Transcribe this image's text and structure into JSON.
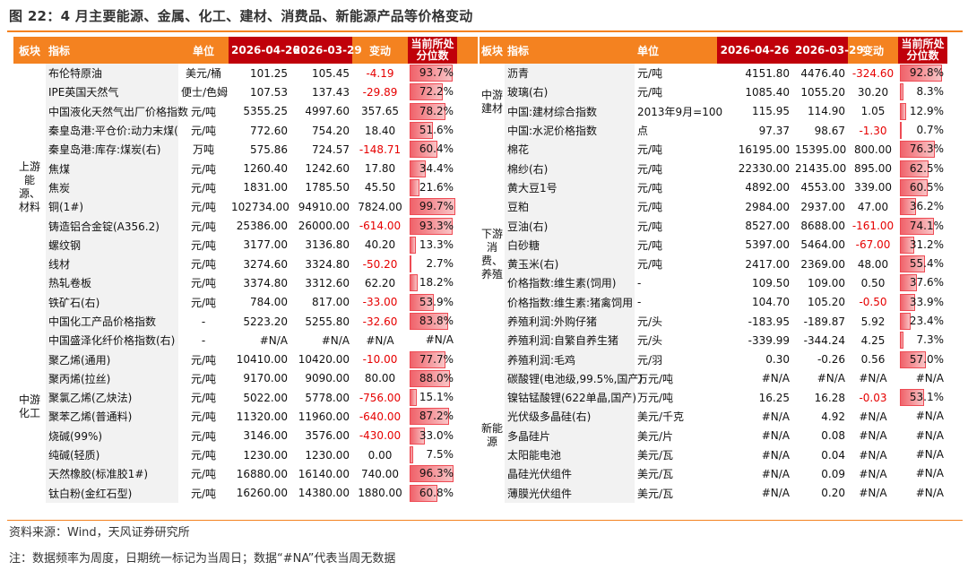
{
  "title": "图 22：4 月主要能源、金属、化工、建材、消费品、新能源产品等价格变动",
  "columns": {
    "block": "板块",
    "indicator": "指标",
    "unit": "单位",
    "date1": "2026-04-26",
    "date2": "2026-03-29",
    "change": "变动",
    "pct_line1": "当前所处",
    "pct_line2": "分位数"
  },
  "colors": {
    "accent": "#f48220",
    "header_dark": "#c0000a",
    "negative": "#e60000",
    "bar": "#f0626a"
  },
  "left_groups": [
    {
      "label": "上游能源、材料",
      "rows": [
        {
          "name": "布伦特原油",
          "unit": "美元/桶",
          "v1": "101.25",
          "v2": "105.45",
          "chg": "-4.19",
          "pct": "93.7%",
          "p": 0.937
        },
        {
          "name": "IPE英国天然气",
          "unit": "便士/色姆",
          "v1": "107.53",
          "v2": "137.43",
          "chg": "-29.89",
          "pct": "72.2%",
          "p": 0.722
        },
        {
          "name": "中国液化天然气出厂价格指数",
          "unit": "元/吨",
          "v1": "5355.25",
          "v2": "4997.60",
          "chg": "357.65",
          "pct": "78.2%",
          "p": 0.782
        },
        {
          "name": "秦皇岛港:平仓价:动力末煤(",
          "unit": "元/吨",
          "v1": "772.60",
          "v2": "754.20",
          "chg": "18.40",
          "pct": "51.6%",
          "p": 0.516
        },
        {
          "name": "秦皇岛港:库存:煤炭(右)",
          "unit": "万吨",
          "v1": "575.86",
          "v2": "724.57",
          "chg": "-148.71",
          "pct": "60.4%",
          "p": 0.604
        },
        {
          "name": "焦煤",
          "unit": "元/吨",
          "v1": "1260.40",
          "v2": "1242.60",
          "chg": "17.80",
          "pct": "34.4%",
          "p": 0.344
        },
        {
          "name": "焦炭",
          "unit": "元/吨",
          "v1": "1831.00",
          "v2": "1785.50",
          "chg": "45.50",
          "pct": "21.6%",
          "p": 0.216
        },
        {
          "name": "铜(1#)",
          "unit": "元/吨",
          "v1": "102734.00",
          "v2": "94910.00",
          "chg": "7824.00",
          "pct": "99.7%",
          "p": 0.997
        },
        {
          "name": "铸造铝合金锭(A356.2)",
          "unit": "元/吨",
          "v1": "25386.00",
          "v2": "26000.00",
          "chg": "-614.00",
          "pct": "93.3%",
          "p": 0.933
        },
        {
          "name": "螺纹钢",
          "unit": "元/吨",
          "v1": "3177.00",
          "v2": "3136.80",
          "chg": "40.20",
          "pct": "13.3%",
          "p": 0.133
        },
        {
          "name": "线材",
          "unit": "元/吨",
          "v1": "3274.60",
          "v2": "3324.80",
          "chg": "-50.20",
          "pct": "2.7%",
          "p": 0.027
        },
        {
          "name": "热轧卷板",
          "unit": "元/吨",
          "v1": "3374.80",
          "v2": "3312.60",
          "chg": "62.20",
          "pct": "18.2%",
          "p": 0.182
        },
        {
          "name": "铁矿石(右)",
          "unit": "元/吨",
          "v1": "784.00",
          "v2": "817.00",
          "chg": "-33.00",
          "pct": "53.9%",
          "p": 0.539
        }
      ]
    },
    {
      "label": "中游化工",
      "rows": [
        {
          "name": "中国化工产品价格指数",
          "unit": "-",
          "v1": "5223.20",
          "v2": "5255.80",
          "chg": "-32.60",
          "pct": "83.8%",
          "p": 0.838
        },
        {
          "name": "中国盛泽化纤价格指数(右)",
          "unit": "-",
          "v1": "#N/A",
          "v2": "#N/A",
          "chg": "#N/A",
          "pct": "#N/A",
          "p": 0
        },
        {
          "name": "聚乙烯(通用)",
          "unit": "元/吨",
          "v1": "10410.00",
          "v2": "10420.00",
          "chg": "-10.00",
          "pct": "77.7%",
          "p": 0.777
        },
        {
          "name": "聚丙烯(拉丝)",
          "unit": "元/吨",
          "v1": "9170.00",
          "v2": "9090.00",
          "chg": "80.00",
          "pct": "88.0%",
          "p": 0.88
        },
        {
          "name": "聚氯乙烯(乙炔法)",
          "unit": "元/吨",
          "v1": "5022.00",
          "v2": "5778.00",
          "chg": "-756.00",
          "pct": "15.1%",
          "p": 0.151
        },
        {
          "name": "聚苯乙烯(普通料)",
          "unit": "元/吨",
          "v1": "11320.00",
          "v2": "11960.00",
          "chg": "-640.00",
          "pct": "87.2%",
          "p": 0.872
        },
        {
          "name": "烧碱(99%)",
          "unit": "元/吨",
          "v1": "3146.00",
          "v2": "3576.00",
          "chg": "-430.00",
          "pct": "33.0%",
          "p": 0.33
        },
        {
          "name": "纯碱(轻质)",
          "unit": "元/吨",
          "v1": "1230.00",
          "v2": "1230.00",
          "chg": "0.00",
          "pct": "7.5%",
          "p": 0.075
        },
        {
          "name": "天然橡胶(标准胶1#)",
          "unit": "元/吨",
          "v1": "16880.00",
          "v2": "16140.00",
          "chg": "740.00",
          "pct": "96.3%",
          "p": 0.963
        },
        {
          "name": "钛白粉(金红石型)",
          "unit": "元/吨",
          "v1": "16260.00",
          "v2": "14380.00",
          "chg": "1880.00",
          "pct": "60.8%",
          "p": 0.608
        }
      ]
    }
  ],
  "right_groups": [
    {
      "label": "中游建材",
      "rows": [
        {
          "name": "沥青",
          "unit": "元/吨",
          "v1": "4151.80",
          "v2": "4476.40",
          "chg": "-324.60",
          "pct": "92.8%",
          "p": 0.928
        },
        {
          "name": "玻璃(右)",
          "unit": "元/吨",
          "v1": "1085.40",
          "v2": "1055.20",
          "chg": "30.20",
          "pct": "8.3%",
          "p": 0.083
        },
        {
          "name": "中国:建材综合指数",
          "unit": "2013年9月=100",
          "v1": "115.95",
          "v2": "114.90",
          "chg": "1.05",
          "pct": "12.9%",
          "p": 0.129
        },
        {
          "name": "中国:水泥价格指数",
          "unit": "点",
          "v1": "97.37",
          "v2": "98.67",
          "chg": "-1.30",
          "pct": "0.7%",
          "p": 0.007
        }
      ]
    },
    {
      "label": "下游消费、养殖",
      "rows": [
        {
          "name": "棉花",
          "unit": "元/吨",
          "v1": "16195.00",
          "v2": "15395.00",
          "chg": "800.00",
          "pct": "76.3%",
          "p": 0.763
        },
        {
          "name": "棉纱(右)",
          "unit": "元/吨",
          "v1": "22330.00",
          "v2": "21435.00",
          "chg": "895.00",
          "pct": "62.5%",
          "p": 0.625
        },
        {
          "name": "黄大豆1号",
          "unit": "元/吨",
          "v1": "4892.00",
          "v2": "4553.00",
          "chg": "339.00",
          "pct": "60.5%",
          "p": 0.605
        },
        {
          "name": "豆粕",
          "unit": "元/吨",
          "v1": "2984.00",
          "v2": "2937.00",
          "chg": "47.00",
          "pct": "36.2%",
          "p": 0.362
        },
        {
          "name": "豆油(右)",
          "unit": "元/吨",
          "v1": "8527.00",
          "v2": "8688.00",
          "chg": "-161.00",
          "pct": "74.1%",
          "p": 0.741
        },
        {
          "name": "白砂糖",
          "unit": "元/吨",
          "v1": "5397.00",
          "v2": "5464.00",
          "chg": "-67.00",
          "pct": "31.2%",
          "p": 0.312
        },
        {
          "name": "黄玉米(右)",
          "unit": "元/吨",
          "v1": "2417.00",
          "v2": "2369.00",
          "chg": "48.00",
          "pct": "55.4%",
          "p": 0.554
        },
        {
          "name": "价格指数:维生素(饲用)",
          "unit": "-",
          "v1": "109.50",
          "v2": "109.00",
          "chg": "0.50",
          "pct": "37.6%",
          "p": 0.376
        },
        {
          "name": "价格指数:维生素:猪禽饲用",
          "unit": "-",
          "v1": "104.70",
          "v2": "105.20",
          "chg": "-0.50",
          "pct": "33.9%",
          "p": 0.339
        },
        {
          "name": "养殖利润:外购仔猪",
          "unit": "元/头",
          "v1": "-183.95",
          "v2": "-189.87",
          "chg": "5.92",
          "pct": "23.4%",
          "p": 0.234
        },
        {
          "name": "养殖利润:自繁自养生猪",
          "unit": "元/头",
          "v1": "-339.99",
          "v2": "-344.24",
          "chg": "4.25",
          "pct": "7.3%",
          "p": 0.073
        },
        {
          "name": "养殖利润:毛鸡",
          "unit": "元/羽",
          "v1": "0.30",
          "v2": "-0.26",
          "chg": "0.56",
          "pct": "57.0%",
          "p": 0.57
        }
      ]
    },
    {
      "label": "新能源",
      "rows": [
        {
          "name": "碳酸锂(电池级,99.5%,国产)",
          "unit": "万元/吨",
          "v1": "#N/A",
          "v2": "#N/A",
          "chg": "#N/A",
          "pct": "#N/A",
          "p": 0
        },
        {
          "name": "镍钴锰酸锂(622单晶,国产)",
          "unit": "万元/吨",
          "v1": "16.25",
          "v2": "16.28",
          "chg": "-0.03",
          "pct": "53.1%",
          "p": 0.531
        },
        {
          "name": "光伏级多晶硅(右)",
          "unit": "美元/千克",
          "v1": "#N/A",
          "v2": "4.92",
          "chg": "#N/A",
          "pct": "#N/A",
          "p": 0
        },
        {
          "name": "多晶硅片",
          "unit": "美元/片",
          "v1": "#N/A",
          "v2": "0.08",
          "chg": "#N/A",
          "pct": "#N/A",
          "p": 0
        },
        {
          "name": "太阳能电池",
          "unit": "美元/瓦",
          "v1": "#N/A",
          "v2": "0.04",
          "chg": "#N/A",
          "pct": "#N/A",
          "p": 0
        },
        {
          "name": "晶硅光伏组件",
          "unit": "美元/瓦",
          "v1": "#N/A",
          "v2": "0.09",
          "chg": "#N/A",
          "pct": "#N/A",
          "p": 0
        },
        {
          "name": "薄膜光伏组件",
          "unit": "美元/瓦",
          "v1": "#N/A",
          "v2": "0.20",
          "chg": "#N/A",
          "pct": "#N/A",
          "p": 0
        }
      ]
    }
  ],
  "source": "资料来源：Wind，天风证券研究所",
  "footnote": "注：数据频率为周度，日期统一标记为当周日；数据“#NA”代表当周无数据"
}
